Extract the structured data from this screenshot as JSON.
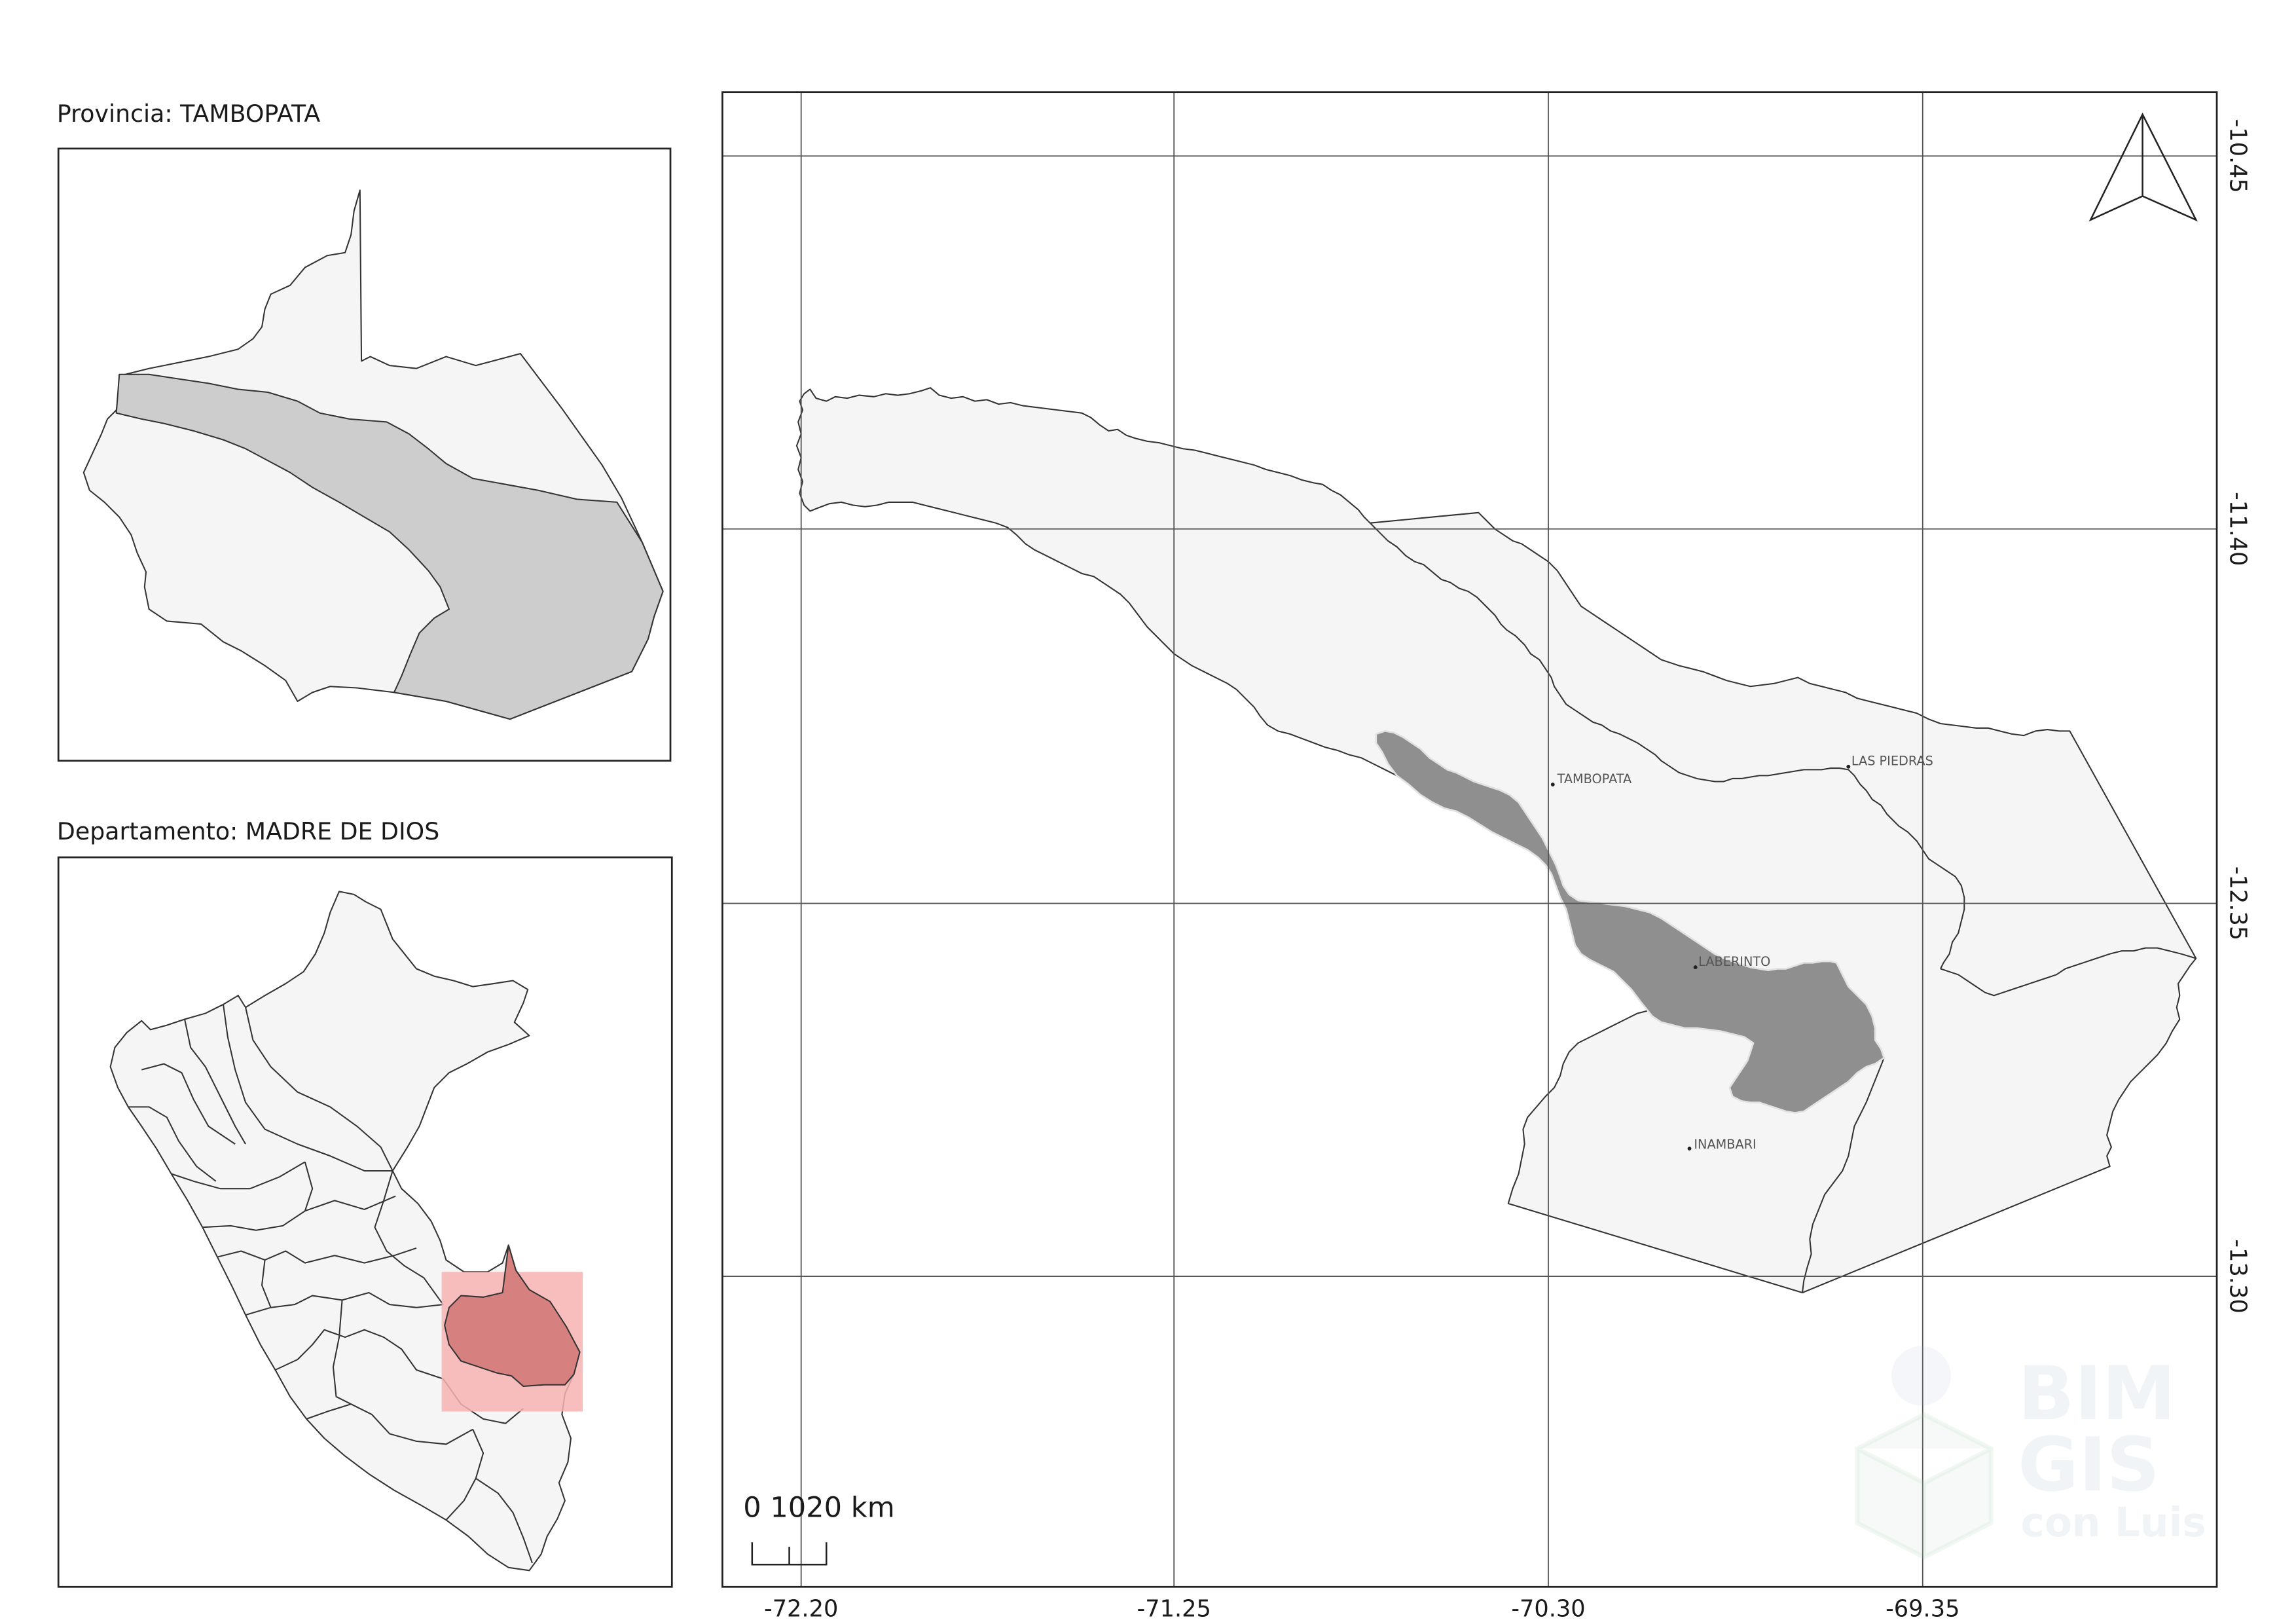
{
  "inset_province": {
    "title": "Provincia: TAMBOPATA"
  },
  "inset_department": {
    "title": "Departamento: MADRE DE DIOS"
  },
  "main_map": {
    "x_tick_labels": [
      "-72.20",
      "-71.25",
      "-70.30",
      "-69.35"
    ],
    "y_tick_labels": [
      "-10.45",
      "-11.40",
      "-12.35",
      "-13.30"
    ],
    "places": [
      {
        "name": "TAMBOPATA"
      },
      {
        "name": "LAS PIEDRAS"
      },
      {
        "name": "LABERINTO"
      },
      {
        "name": "INAMBARI"
      }
    ],
    "scale_bar_label": "0 1020 km",
    "north_arrow_icon": "north-arrow-icon"
  },
  "watermark": {
    "lines": [
      "BIM",
      "GIS",
      "con Luis"
    ]
  },
  "colors": {
    "background": "#ffffff",
    "region_fill": "#f5f5f5",
    "tambopata_province_fill": "#cdcdcd",
    "highlight_district_fill": "#8f8f8f",
    "highlight_district_outline": "#e2e2e2",
    "locator_box_fill": "#f7b2b2",
    "madre_de_dios_fill": "#d6817f",
    "boundary_stroke": "#333333",
    "grid_stroke": "#555555"
  }
}
